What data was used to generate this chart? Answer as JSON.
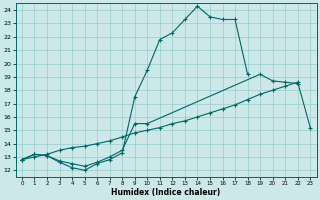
{
  "title": "",
  "xlabel": "Humidex (Indice chaleur)",
  "background_color": "#cce8e8",
  "grid_color": "#99cccc",
  "line_color": "#006666",
  "xlim": [
    -0.5,
    23.5
  ],
  "ylim": [
    11.5,
    24.5
  ],
  "xticks": [
    0,
    1,
    2,
    3,
    4,
    5,
    6,
    7,
    8,
    9,
    10,
    11,
    12,
    13,
    14,
    15,
    16,
    17,
    18,
    19,
    20,
    21,
    22,
    23
  ],
  "yticks": [
    12,
    13,
    14,
    15,
    16,
    17,
    18,
    19,
    20,
    21,
    22,
    23,
    24
  ],
  "line1_x": [
    0,
    1,
    2,
    3,
    4,
    5,
    6,
    7,
    8,
    9,
    10,
    11,
    12,
    13,
    14,
    15,
    16,
    17,
    18
  ],
  "line1_y": [
    12.8,
    13.2,
    13.1,
    12.6,
    12.2,
    12.0,
    12.5,
    12.8,
    13.3,
    17.5,
    19.5,
    21.8,
    22.3,
    23.3,
    24.3,
    23.5,
    23.3,
    23.3,
    19.2
  ],
  "line2_x": [
    0,
    1,
    2,
    3,
    4,
    5,
    6,
    7,
    8,
    9,
    10,
    19,
    20,
    21,
    22
  ],
  "line2_y": [
    12.8,
    13.2,
    13.1,
    12.7,
    12.5,
    12.3,
    12.6,
    13.0,
    13.5,
    15.5,
    15.5,
    19.2,
    18.7,
    18.6,
    18.5
  ],
  "line3_x": [
    0,
    1,
    2,
    3,
    4,
    5,
    6,
    7,
    8,
    9,
    10,
    11,
    12,
    13,
    14,
    15,
    16,
    17,
    18,
    19,
    20,
    21,
    22,
    23
  ],
  "line3_y": [
    12.8,
    13.0,
    13.2,
    13.5,
    13.7,
    13.8,
    14.0,
    14.2,
    14.5,
    14.8,
    15.0,
    15.2,
    15.5,
    15.7,
    16.0,
    16.3,
    16.6,
    16.9,
    17.3,
    17.7,
    18.0,
    18.3,
    18.6,
    15.2
  ]
}
